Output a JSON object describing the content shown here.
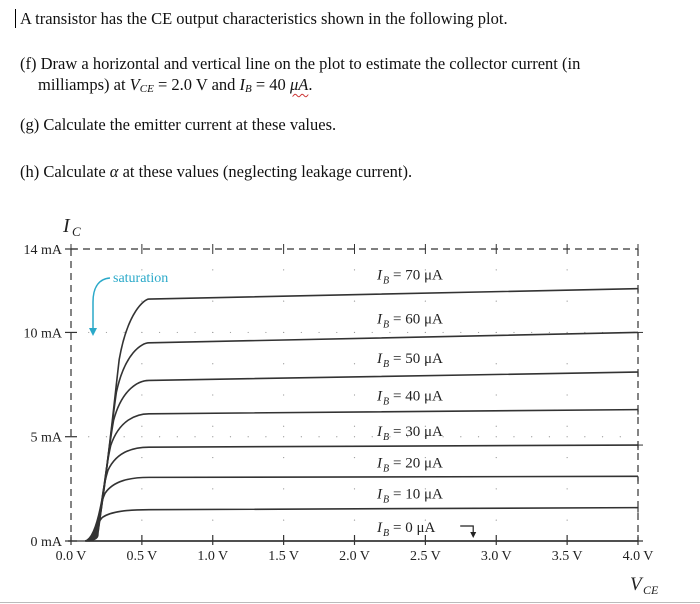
{
  "question": {
    "intro": "A transistor has the CE output characteristics shown in the following plot.",
    "part_f": {
      "line1": "(f) Draw a horizontal and vertical line on the plot to estimate the collector current (in",
      "line2_prefix": "milliamps) at ",
      "vce_symbol": "V",
      "vce_sub": "CE",
      "vce_value": " = 2.0 V and ",
      "ib_symbol": "I",
      "ib_sub": "B",
      "ib_value": " = 40 ",
      "ib_unit": "μA",
      "end": "."
    },
    "part_g": "(g) Calculate the emitter current at these values.",
    "part_h_prefix": "(h) Calculate ",
    "part_h_symbol": "α",
    "part_h_suffix": " at these values (neglecting leakage current)."
  },
  "chart_data": {
    "type": "line",
    "title": "",
    "xlabel": "V_CE",
    "ylabel": "I_C",
    "xlim": [
      0,
      4.0
    ],
    "ylim": [
      0,
      14
    ],
    "x_ticks": [
      "0.0 V",
      "0.5 V",
      "1.0 V",
      "1.5 V",
      "2.0 V",
      "2.5 V",
      "3.0 V",
      "3.5 V",
      "4.0 V"
    ],
    "y_ticks": [
      "0 mA",
      "5 mA",
      "10 mA",
      "14 mA"
    ],
    "grid": "dotted",
    "annotations": [
      {
        "text": "saturation",
        "color": "#2aa9c9"
      }
    ],
    "x": [
      0.0,
      0.1,
      0.2,
      0.3,
      0.4,
      0.5,
      1.0,
      2.0,
      3.0,
      4.0
    ],
    "series": [
      {
        "name": "I_B = 70 μA",
        "label": "70 μA",
        "values": [
          0,
          0,
          3.5,
          9.5,
          11.3,
          11.6,
          11.8,
          11.9,
          12.0,
          12.1
        ]
      },
      {
        "name": "I_B = 60 μA",
        "label": "60 μA",
        "values": [
          0,
          0,
          3.2,
          8.0,
          9.2,
          9.5,
          9.7,
          9.8,
          9.9,
          10.0
        ]
      },
      {
        "name": "I_B = 50 μA",
        "label": "50 μA",
        "values": [
          0,
          0,
          2.9,
          6.5,
          7.5,
          7.7,
          7.9,
          8.0,
          8.05,
          8.1
        ]
      },
      {
        "name": "I_B = 40 μA",
        "label": "40 μA",
        "values": [
          0,
          0,
          2.6,
          5.0,
          5.9,
          6.1,
          6.2,
          6.25,
          6.3,
          6.3
        ]
      },
      {
        "name": "I_B = 30 μA",
        "label": "30 μA",
        "values": [
          0,
          0,
          2.2,
          3.7,
          4.4,
          4.5,
          4.6,
          4.6,
          4.6,
          4.6
        ]
      },
      {
        "name": "I_B = 20 μA",
        "label": "20 μA",
        "values": [
          0,
          0,
          1.6,
          2.5,
          2.9,
          3.05,
          3.1,
          3.1,
          3.1,
          3.1
        ]
      },
      {
        "name": "I_B = 10 μA",
        "label": "10 μA",
        "values": [
          0,
          0,
          0.7,
          1.2,
          1.45,
          1.5,
          1.55,
          1.55,
          1.6,
          1.6
        ]
      },
      {
        "name": "I_B = 0 μA",
        "label": "0 μA",
        "values": [
          0,
          0,
          0,
          0,
          0,
          0,
          0,
          0,
          0,
          0
        ]
      }
    ]
  }
}
